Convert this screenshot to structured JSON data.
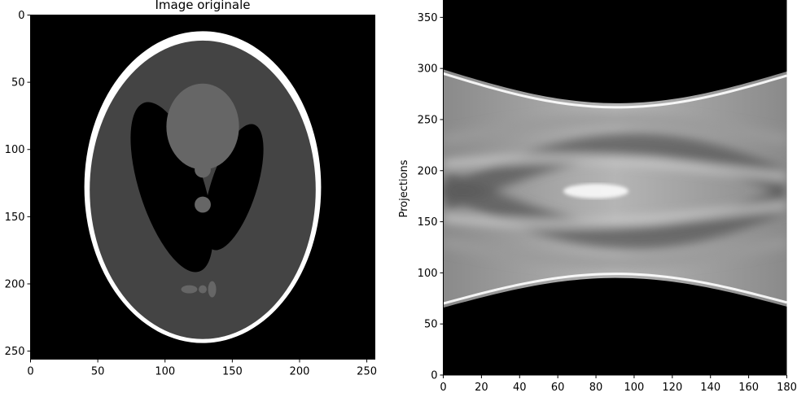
{
  "chart_data": [
    {
      "type": "image",
      "title": "Image originale",
      "xlabel": "",
      "ylabel": "",
      "xlim": [
        0,
        256
      ],
      "ylim": [
        256,
        0
      ],
      "y_inverted": true,
      "xticks": [
        0,
        50,
        100,
        150,
        200,
        250
      ],
      "yticks": [
        0,
        50,
        100,
        150,
        200,
        250
      ],
      "colormap": "gray",
      "content": "Shepp-Logan phantom",
      "ellipses": [
        {
          "cx": 128,
          "cy": 128,
          "rx": 88,
          "ry": 116,
          "intensity": 1.0
        },
        {
          "cx": 128,
          "cy": 130,
          "rx": 84,
          "ry": 111,
          "intensity": 0.27
        },
        {
          "cx": 151,
          "cy": 128,
          "rx": 17,
          "ry": 49,
          "angle": 18,
          "intensity": 0.0
        },
        {
          "cx": 105,
          "cy": 128,
          "rx": 24,
          "ry": 66,
          "angle": -18,
          "intensity": 0.0
        },
        {
          "cx": 128,
          "cy": 83,
          "rx": 27,
          "ry": 32,
          "intensity": 0.38
        },
        {
          "cx": 128,
          "cy": 115,
          "rx": 6,
          "ry": 6,
          "intensity": 0.38
        },
        {
          "cx": 128,
          "cy": 141,
          "rx": 6,
          "ry": 6,
          "intensity": 0.38
        },
        {
          "cx": 118,
          "cy": 204,
          "rx": 6,
          "ry": 3,
          "intensity": 0.38
        },
        {
          "cx": 128,
          "cy": 204,
          "rx": 3,
          "ry": 3,
          "intensity": 0.38
        },
        {
          "cx": 135,
          "cy": 204,
          "rx": 3,
          "ry": 6,
          "intensity": 0.38
        }
      ],
      "background": "#000000",
      "skull_color": "#ffffff",
      "brain_color": "#444444",
      "inner_color": "#666666"
    },
    {
      "type": "image",
      "title": "",
      "xlabel": "",
      "ylabel": "Projections",
      "xlim": [
        0,
        180
      ],
      "ylim": [
        0,
        367
      ],
      "xticks": [
        0,
        20,
        40,
        60,
        80,
        100,
        120,
        140,
        160,
        180
      ],
      "yticks": [
        0,
        50,
        100,
        150,
        200,
        250,
        300,
        350
      ],
      "colormap": "gray",
      "content": "Sinogram",
      "upper_boundary": [
        [
          0,
          299
        ],
        [
          90,
          266
        ],
        [
          180,
          297
        ]
      ],
      "lower_boundary": [
        [
          0,
          66
        ],
        [
          90,
          95
        ],
        [
          180,
          67
        ]
      ],
      "bright_crossing": [
        80,
        180
      ],
      "background": "#000000"
    }
  ]
}
